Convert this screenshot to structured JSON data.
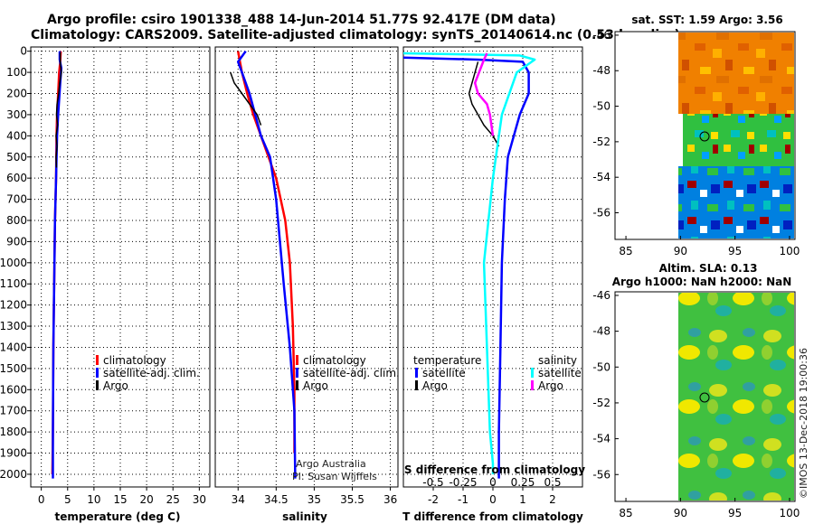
{
  "titles": {
    "line1": "Argo profile: csiro 1901338_488 14-Jun-2014 51.77S 92.417E (DM data)",
    "line2": "Climatology: CARS2009. Satellite-adjusted climatology: synTS_20140614.nc (0.53d earlier)"
  },
  "colors": {
    "climatology": "#ff0000",
    "satellite": "#0000ff",
    "argo": "#000000",
    "satellite_s": "#00ffff",
    "argo_s": "#ff00ff"
  },
  "depth_ticks": [
    "0",
    "100",
    "200",
    "300",
    "400",
    "500",
    "600",
    "700",
    "800",
    "900",
    "1000",
    "1100",
    "1200",
    "1300",
    "1400",
    "1500",
    "1600",
    "1700",
    "1800",
    "1900",
    "2000"
  ],
  "chart_data": [
    {
      "type": "line",
      "name": "temperature",
      "xlabel": "temperature (deg C)",
      "ylabel": "depth (dbar)",
      "xlim": [
        -2,
        32
      ],
      "ylim": [
        2060,
        -20
      ],
      "xticks": [
        0,
        5,
        10,
        15,
        20,
        25,
        30
      ],
      "xtick_labels": [
        "0",
        "5",
        "10",
        "15",
        "20",
        "25",
        "30"
      ],
      "legend": [
        "climatology",
        "satellite-adj. clim.",
        "Argo"
      ],
      "series": [
        {
          "name": "climatology",
          "color": "#ff0000",
          "x": [
            3.7,
            3.6,
            3.4,
            3.2,
            3.0,
            2.9,
            2.8,
            2.6,
            2.5,
            2.3,
            2.2,
            2.1
          ],
          "y": [
            0,
            50,
            100,
            200,
            300,
            400,
            600,
            800,
            1000,
            1400,
            1800,
            2000
          ]
        },
        {
          "name": "satellite-adj. clim.",
          "color": "#0000ff",
          "x": [
            3.5,
            3.5,
            3.8,
            3.6,
            3.2,
            3.0,
            2.8,
            2.6,
            2.5,
            2.3,
            2.2,
            2.2
          ],
          "y": [
            0,
            40,
            80,
            150,
            300,
            400,
            600,
            800,
            1000,
            1400,
            1800,
            2020
          ]
        },
        {
          "name": "Argo",
          "color": "#000000",
          "x": [
            3.6,
            3.6,
            3.8,
            3.5,
            3.3,
            3.0,
            2.9,
            3.1,
            2.8,
            3.0,
            2.8,
            2.9
          ],
          "y": [
            5,
            50,
            100,
            150,
            200,
            250,
            300,
            350,
            400,
            450,
            500,
            550
          ]
        }
      ]
    },
    {
      "type": "line",
      "name": "salinity",
      "xlabel": "salinity",
      "ylabel": "depth (dbar)",
      "xlim": [
        33.7,
        36.1
      ],
      "ylim": [
        2060,
        -20
      ],
      "xticks": [
        34,
        34.5,
        35,
        35.5,
        36
      ],
      "xtick_labels": [
        "34",
        "34.5",
        "35",
        "35.5",
        "36"
      ],
      "legend": [
        "climatology",
        "satellite-adj. clim.",
        "Argo"
      ],
      "annotation": [
        "Argo Australia",
        "PI: Susan Wijffels"
      ],
      "series": [
        {
          "name": "climatology",
          "color": "#ff0000",
          "x": [
            34.0,
            34.05,
            34.12,
            34.2,
            34.3,
            34.4,
            34.5,
            34.62,
            34.68,
            34.72,
            34.74,
            34.74
          ],
          "y": [
            0,
            100,
            200,
            300,
            400,
            500,
            600,
            800,
            1000,
            1300,
            1600,
            1900
          ]
        },
        {
          "name": "satellite-adj. clim.",
          "color": "#0000ff",
          "x": [
            34.1,
            34.0,
            34.05,
            34.15,
            34.3,
            34.42,
            34.5,
            34.55,
            34.6,
            34.68,
            34.74,
            34.75
          ],
          "y": [
            0,
            50,
            100,
            200,
            400,
            500,
            700,
            900,
            1100,
            1400,
            1700,
            2020
          ]
        },
        {
          "name": "Argo",
          "color": "#000000",
          "x": [
            33.9,
            33.95,
            34.05,
            34.15,
            34.25,
            34.3
          ],
          "y": [
            100,
            150,
            200,
            250,
            300,
            350
          ]
        }
      ]
    },
    {
      "type": "line",
      "name": "difference",
      "xlabel": "T difference from climatology",
      "xlabel_top": "S difference from climatology",
      "xlim": [
        -3,
        3
      ],
      "ylim": [
        2060,
        -20
      ],
      "xticks": [
        -2,
        -1,
        0,
        1,
        2
      ],
      "xtick_labels": [
        "-2",
        "-1",
        "0",
        "1",
        "2"
      ],
      "top_ticks": [
        "-0.5",
        "-0.25",
        "0",
        "0.25",
        "0.5"
      ],
      "legend_groups": [
        {
          "title": "temperature",
          "items": [
            "satellite",
            "Argo"
          ]
        },
        {
          "title": "salinity",
          "items": [
            "satellite",
            "Argo"
          ]
        }
      ],
      "series": [
        {
          "name": "T satellite",
          "color": "#0000ff",
          "x": [
            -3,
            -0.5,
            1.0,
            1.2,
            1.2,
            0.9,
            0.5,
            0.4,
            0.3,
            0.25,
            0.2,
            0.2
          ],
          "y": [
            30,
            40,
            50,
            100,
            200,
            300,
            500,
            700,
            1000,
            1400,
            1800,
            2020
          ]
        },
        {
          "name": "T Argo",
          "color": "#000000",
          "x": [
            -0.5,
            -0.6,
            -0.7,
            -0.8,
            -0.7,
            -0.5,
            -0.3,
            0.0,
            0.2
          ],
          "y": [
            50,
            100,
            150,
            200,
            250,
            300,
            350,
            400,
            450
          ]
        },
        {
          "name": "S satellite",
          "color": "#00ffff",
          "x": [
            -3,
            0.9,
            1.4,
            0.8,
            0.3,
            0.0,
            -0.3,
            -0.2,
            -0.1,
            0.0,
            0.0
          ],
          "y": [
            10,
            20,
            40,
            100,
            300,
            600,
            1000,
            1400,
            1800,
            1950,
            2000
          ]
        },
        {
          "name": "S Argo",
          "color": "#ff00ff",
          "x": [
            -0.2,
            -0.3,
            -0.6,
            -0.5,
            -0.2,
            -0.1,
            0.0
          ],
          "y": [
            10,
            40,
            150,
            200,
            250,
            300,
            400
          ]
        }
      ]
    },
    {
      "type": "heatmap",
      "name": "sst_map",
      "title": "sat. SST: 1.59 Argo: 3.56",
      "xlim": [
        84,
        100.5
      ],
      "ylim": [
        -57.5,
        -45.8
      ],
      "xticks": [
        85,
        90,
        95,
        100
      ],
      "yticks": [
        -46,
        -48,
        -50,
        -52,
        -54,
        -56
      ],
      "ytick_labels": [
        "-46",
        "-48",
        "-50",
        "-52",
        "-54",
        "-56"
      ],
      "xtick_labels": [
        "85",
        "90",
        "95",
        "100"
      ],
      "marker": [
        92.4,
        -51.8
      ]
    },
    {
      "type": "heatmap",
      "name": "sla_map",
      "title": "Altim. SLA: 0.13",
      "subtitle": "Argo h1000: NaN h2000: NaN",
      "xlim": [
        84,
        100.5
      ],
      "ylim": [
        -57.5,
        -45.8
      ],
      "xticks": [
        85,
        90,
        95,
        100
      ],
      "yticks": [
        -46,
        -48,
        -50,
        -52,
        -54,
        -56
      ],
      "ytick_labels": [
        "-46",
        "-48",
        "-50",
        "-52",
        "-54",
        "-56"
      ],
      "xtick_labels": [
        "85",
        "90",
        "95",
        "100"
      ],
      "marker": [
        92.4,
        -51.8
      ]
    }
  ],
  "credit": "©IMOS 13-Dec-2018 19:00:36"
}
